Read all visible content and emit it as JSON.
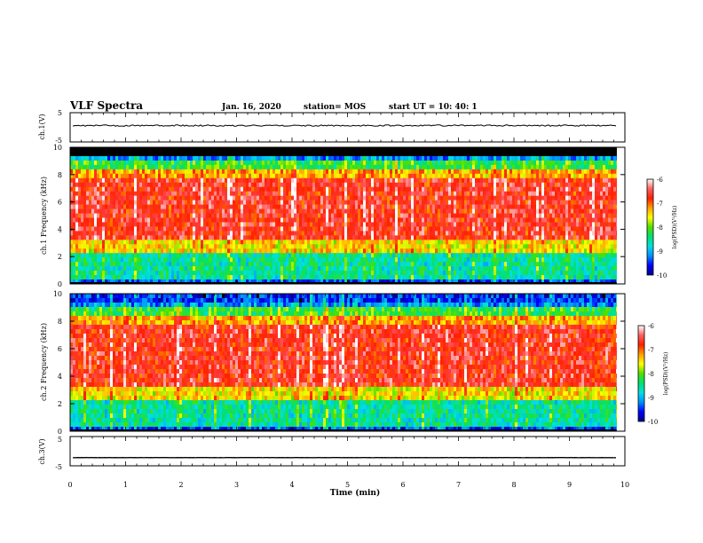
{
  "header": {
    "title": "VLF Spectra",
    "date": "Jan. 16, 2020",
    "station": "station= MOS",
    "start_ut": "start  UT  =   10: 40: 1"
  },
  "colors": {
    "spectrum_stops": [
      "#00008b",
      "#0000ff",
      "#0090ff",
      "#00e0e0",
      "#00e070",
      "#50e000",
      "#ffff00",
      "#ffa000",
      "#ff2000",
      "#ff4040",
      "#ffffff"
    ],
    "axis": "#000000",
    "background": "#ffffff"
  },
  "chart_data": [
    {
      "type": "line",
      "ylabel": "ch.1(V)",
      "ylim": [
        -5,
        5
      ],
      "yticks": [
        "5",
        "-5"
      ],
      "xlim": [
        0,
        10
      ],
      "series": [
        {
          "trace_level": 0.6
        }
      ]
    },
    {
      "type": "heatmap",
      "ylabel": "ch.1 Frequency (kHz)",
      "ylim": [
        0,
        10
      ],
      "yticks": [
        "0",
        "2",
        "4",
        "6",
        "8",
        "10"
      ],
      "xlim": [
        0,
        10
      ],
      "data_end_min": 9.85,
      "colorbar": {
        "label": "log(PSD)(V²/Hz)",
        "range": [
          -10,
          -6
        ],
        "ticks": [
          "-6",
          "-7",
          "-8",
          "-9",
          "-10"
        ]
      }
    },
    {
      "type": "heatmap",
      "ylabel": "ch.2 Frequency (kHz)",
      "ylim": [
        0,
        10
      ],
      "yticks": [
        "0",
        "2",
        "4",
        "6",
        "8",
        "10"
      ],
      "xlim": [
        0,
        10
      ],
      "data_end_min": 9.85,
      "colorbar": {
        "label": "log(PSD)(V²/Hz)",
        "range": [
          -10,
          -6
        ],
        "ticks": [
          "-6",
          "-7",
          "-8",
          "-9",
          "-10"
        ]
      }
    },
    {
      "type": "line",
      "ylabel": "ch.3(V)",
      "ylim": [
        -5,
        5
      ],
      "yticks": [
        "5",
        "-5"
      ],
      "xlim": [
        0,
        10
      ],
      "series": [
        {
          "trace_level": -2.2
        }
      ]
    }
  ],
  "xaxis": {
    "label": "Time  (min)",
    "ticks": [
      "0",
      "1",
      "2",
      "3",
      "4",
      "5",
      "6",
      "7",
      "8",
      "9",
      "10"
    ]
  }
}
